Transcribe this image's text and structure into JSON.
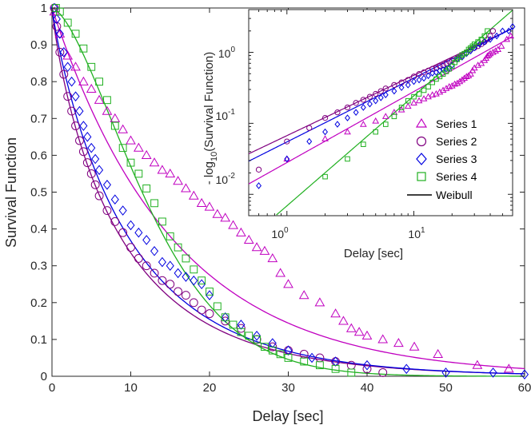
{
  "chart_data": [
    {
      "type": "scatter",
      "title": "",
      "xlabel": "Delay [sec]",
      "ylabel": "Survival Function",
      "xlim": [
        0,
        60
      ],
      "ylim": [
        0,
        1
      ],
      "xticks": [
        0,
        10,
        20,
        30,
        40,
        50,
        60
      ],
      "yticks": [
        0,
        0.1,
        0.2,
        0.3,
        0.4,
        0.5,
        0.6,
        0.7,
        0.8,
        0.9,
        1
      ],
      "grid": false,
      "series": [
        {
          "name": "Series 1",
          "marker": "triangle",
          "color": "#c000c0",
          "x": [
            0.3,
            1,
            2,
            3,
            4,
            5,
            6,
            7,
            8,
            9,
            10,
            11,
            12,
            13,
            14,
            15,
            16,
            17,
            18,
            19,
            20,
            21,
            22,
            23,
            24,
            25,
            26,
            27,
            28,
            29,
            30,
            32,
            34,
            36,
            37,
            38,
            39,
            40,
            42,
            44,
            46,
            49,
            54,
            58
          ],
          "y": [
            0.99,
            0.93,
            0.87,
            0.84,
            0.8,
            0.78,
            0.75,
            0.72,
            0.7,
            0.67,
            0.64,
            0.62,
            0.6,
            0.58,
            0.56,
            0.55,
            0.53,
            0.51,
            0.49,
            0.47,
            0.46,
            0.44,
            0.43,
            0.41,
            0.39,
            0.37,
            0.35,
            0.34,
            0.32,
            0.28,
            0.25,
            0.22,
            0.2,
            0.17,
            0.15,
            0.13,
            0.12,
            0.11,
            0.1,
            0.09,
            0.08,
            0.06,
            0.03,
            0.02
          ]
        },
        {
          "name": "Series 2",
          "marker": "circle",
          "color": "#800080",
          "x": [
            0.3,
            0.6,
            1,
            1.5,
            2,
            2.5,
            3,
            3.5,
            4,
            4.5,
            5,
            5.5,
            6,
            7,
            8,
            9,
            10,
            11,
            12,
            13,
            14,
            15,
            16,
            17,
            18,
            19,
            20,
            22,
            24,
            26,
            28,
            30,
            32,
            34,
            36,
            38,
            40,
            42
          ],
          "y": [
            1.0,
            0.95,
            0.88,
            0.82,
            0.76,
            0.72,
            0.68,
            0.64,
            0.61,
            0.58,
            0.55,
            0.52,
            0.49,
            0.45,
            0.42,
            0.39,
            0.35,
            0.32,
            0.3,
            0.28,
            0.26,
            0.25,
            0.23,
            0.22,
            0.2,
            0.18,
            0.17,
            0.15,
            0.13,
            0.1,
            0.08,
            0.07,
            0.06,
            0.05,
            0.04,
            0.03,
            0.02,
            0.01
          ]
        },
        {
          "name": "Series 3",
          "marker": "diamond",
          "color": "#0000e0",
          "x": [
            0.3,
            0.6,
            1,
            1.5,
            2,
            2.5,
            3,
            3.5,
            4,
            4.5,
            5,
            5.5,
            6,
            7,
            8,
            9,
            10,
            11,
            12,
            13,
            14,
            15,
            16,
            17,
            18,
            19,
            20,
            22,
            24,
            26,
            28,
            30,
            33,
            36,
            40,
            45,
            50,
            56,
            60
          ],
          "y": [
            1.0,
            0.97,
            0.93,
            0.88,
            0.84,
            0.8,
            0.76,
            0.72,
            0.68,
            0.65,
            0.62,
            0.59,
            0.56,
            0.52,
            0.48,
            0.45,
            0.41,
            0.39,
            0.37,
            0.34,
            0.31,
            0.3,
            0.28,
            0.27,
            0.26,
            0.25,
            0.22,
            0.16,
            0.14,
            0.11,
            0.09,
            0.07,
            0.05,
            0.04,
            0.03,
            0.02,
            0.01,
            0.01,
            0.005
          ]
        },
        {
          "name": "Series 4",
          "marker": "square",
          "color": "#20b020",
          "x": [
            0.5,
            1,
            2,
            3,
            4,
            5,
            6,
            7,
            8,
            9,
            10,
            11,
            12,
            13,
            14,
            15,
            16,
            17,
            18,
            19,
            20,
            21,
            22,
            23,
            24,
            25,
            26,
            27,
            28,
            29,
            30,
            32,
            34,
            36,
            38
          ],
          "y": [
            1.0,
            0.99,
            0.96,
            0.93,
            0.89,
            0.84,
            0.8,
            0.75,
            0.68,
            0.62,
            0.58,
            0.55,
            0.51,
            0.47,
            0.42,
            0.38,
            0.35,
            0.32,
            0.29,
            0.26,
            0.23,
            0.19,
            0.16,
            0.14,
            0.12,
            0.11,
            0.1,
            0.08,
            0.07,
            0.06,
            0.05,
            0.04,
            0.03,
            0.02,
            0.01
          ]
        }
      ],
      "fits": [
        {
          "name": "Series 1 fit",
          "color": "#c000c0",
          "lambda": 15.5,
          "k": 1.0
        },
        {
          "name": "Series 2 fit",
          "color": "#800080",
          "lambda": 9.0,
          "k": 0.85
        },
        {
          "name": "Series 3 fit",
          "color": "#0000e0",
          "lambda": 10.0,
          "k": 0.9
        },
        {
          "name": "Series 4 fit",
          "color": "#20b020",
          "lambda": 14.5,
          "k": 1.55
        }
      ]
    },
    {
      "type": "scatter",
      "title": "",
      "xlabel": "Delay [sec]",
      "ylabel": "- log10(Survival Function)",
      "xscale": "log",
      "yscale": "log",
      "xlim": [
        0.5,
        60
      ],
      "ylim": [
        0.005,
        4
      ],
      "xtick_labels": [
        "10^0",
        "10^1"
      ],
      "ytick_labels": [
        "10^-2",
        "10^-1",
        "10^0"
      ],
      "legend_placement": "right",
      "legend": [
        "Series 1",
        "Series 2",
        "Series 3",
        "Series 4",
        "Weibull"
      ]
    }
  ],
  "labels": {
    "main_xlabel": "Delay [sec]",
    "main_ylabel": "Survival Function",
    "inset_xlabel": "Delay [sec]",
    "inset_ylabel_prefix": "- log",
    "inset_ylabel_sub": "10",
    "inset_ylabel_suffix": "(Survival Function)",
    "legend_1": "Series 1",
    "legend_2": "Series 2",
    "legend_3": "Series 3",
    "legend_4": "Series 4",
    "legend_5": "Weibull",
    "inset_xtick_base": "10",
    "inset_xtick_exp_0": "0",
    "inset_xtick_exp_1": "1",
    "inset_ytick_exp_m2": "-2",
    "inset_ytick_exp_m1": "-1",
    "inset_ytick_exp_0": "0"
  }
}
